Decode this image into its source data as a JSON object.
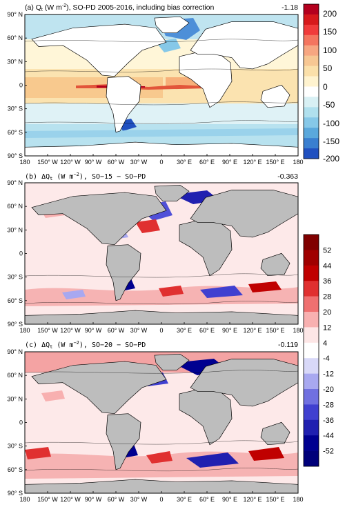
{
  "chart_data": [
    {
      "type": "heatmap",
      "title": "(a) Q",
      "title_sub": "t",
      "title_rest": " (W m",
      "title_sup": "-2",
      "title_end": "), SO-PD 2005-2016, including bias correction",
      "global_mean": "-1.18",
      "xticks": [
        "180",
        "150° W",
        "120° W",
        "90° W",
        "60° W",
        "30° W",
        "0",
        "30° E",
        "60° E",
        "90° E",
        "120° E",
        "150° E",
        "180"
      ],
      "yticks": [
        "90° N",
        "60° N",
        "30° N",
        "0",
        "30° S",
        "60° S",
        "90° S"
      ],
      "colorbar_ticks": [
        "200",
        "150",
        "100",
        "50",
        "0",
        "-50",
        "-100",
        "-150",
        "-200"
      ],
      "colors": [
        "#b4001e",
        "#d7191c",
        "#f03b3b",
        "#f4755f",
        "#f7a681",
        "#f7c793",
        "#fbe0aa",
        "#fff3cf",
        "#ffffff",
        "#d8f0f4",
        "#b0e0ee",
        "#86c8e8",
        "#5aa8dc",
        "#3a7fd0",
        "#2050c0"
      ]
    },
    {
      "type": "heatmap",
      "title": "(b) ΔQ",
      "title_sub": "t",
      "title_rest": " (W m",
      "title_sup": "−2",
      "title_end": "), SO−15 − SO−PD",
      "global_mean": "-0.363",
      "xticks": [
        "180",
        "150° W",
        "120° W",
        "90° W",
        "60° W",
        "30° W",
        "0",
        "30° E",
        "60° E",
        "90° E",
        "120° E",
        "150° E",
        "180"
      ],
      "yticks": [
        "90° N",
        "60° N",
        "30° N",
        "0",
        "30° S",
        "60° S",
        "90° S"
      ],
      "colorbar_ticks": [
        "52",
        "44",
        "36",
        "28",
        "20",
        "12",
        "4",
        "-4",
        "-12",
        "-20",
        "-28",
        "-36",
        "-44",
        "-52"
      ]
    },
    {
      "type": "heatmap",
      "title": "(c) ΔQ",
      "title_sub": "t",
      "title_rest": " (W m",
      "title_sup": "−2",
      "title_end": "), SO−20 − SO−PD",
      "global_mean": "-0.119",
      "xticks": [
        "180",
        "150° W",
        "120° W",
        "90° W",
        "60° W",
        "30° W",
        "0",
        "30° E",
        "60° E",
        "90° E",
        "120° E",
        "150° E",
        "180"
      ],
      "yticks": [
        "90° N",
        "60° N",
        "30° N",
        "0",
        "30° S",
        "60° S",
        "90° S"
      ]
    }
  ],
  "diff_colors": [
    "#800000",
    "#a00000",
    "#c00000",
    "#e03030",
    "#ef7070",
    "#f8b0b0",
    "#fde6e6",
    "#ffffff",
    "#d8d8f8",
    "#a8a8f0",
    "#7070e0",
    "#4040d0",
    "#2020b0",
    "#000090",
    "#00007a"
  ]
}
